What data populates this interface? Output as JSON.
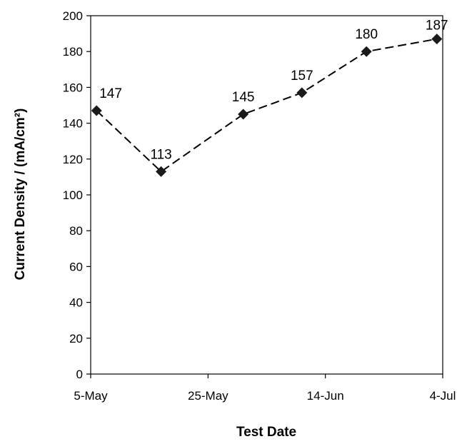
{
  "chart_data": {
    "type": "line",
    "title": "",
    "xlabel": "Test Date",
    "ylabel": "Current Density / (mA/cm²)",
    "x_ticks": [
      "5-May",
      "25-May",
      "14-Jun",
      "4-Jul"
    ],
    "x_tick_values": [
      "05-May",
      "25-May",
      "14-Jun",
      "04-Jul"
    ],
    "xlim": [
      "05-May",
      "04-Jul"
    ],
    "ylim": [
      0,
      200
    ],
    "y_ticks": [
      0,
      20,
      40,
      60,
      80,
      100,
      120,
      140,
      160,
      180,
      200
    ],
    "grid": false,
    "legend": "none",
    "series": [
      {
        "line_style": "dashed",
        "marker": "diamond",
        "color": "#000000",
        "points": [
          {
            "x": "06-May",
            "y": 147,
            "label": "147"
          },
          {
            "x": "17-May",
            "y": 113,
            "label": "113"
          },
          {
            "x": "31-May",
            "y": 145,
            "label": "145"
          },
          {
            "x": "10-Jun",
            "y": 157,
            "label": "157"
          },
          {
            "x": "21-Jun",
            "y": 180,
            "label": "180"
          },
          {
            "x": "03-Jul",
            "y": 187,
            "label": "187"
          }
        ]
      }
    ]
  }
}
